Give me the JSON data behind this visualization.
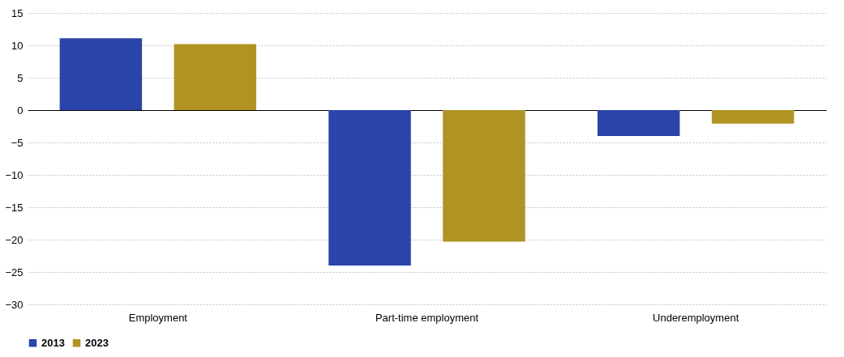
{
  "chart_data": {
    "type": "bar",
    "categories": [
      "Employment",
      "Part-time employment",
      "Underemployment"
    ],
    "series": [
      {
        "name": "2013",
        "color": "#2a45a9",
        "values": [
          11.1,
          -24.0,
          -4.0
        ]
      },
      {
        "name": "2023",
        "color": "#b09323",
        "values": [
          10.2,
          -20.3,
          -2.1
        ]
      }
    ],
    "ylim": [
      -30,
      15
    ],
    "yticks": [
      -30,
      -25,
      -20,
      -15,
      -10,
      -5,
      0,
      5,
      10,
      15
    ],
    "grid": "y",
    "legend": "bottom"
  }
}
